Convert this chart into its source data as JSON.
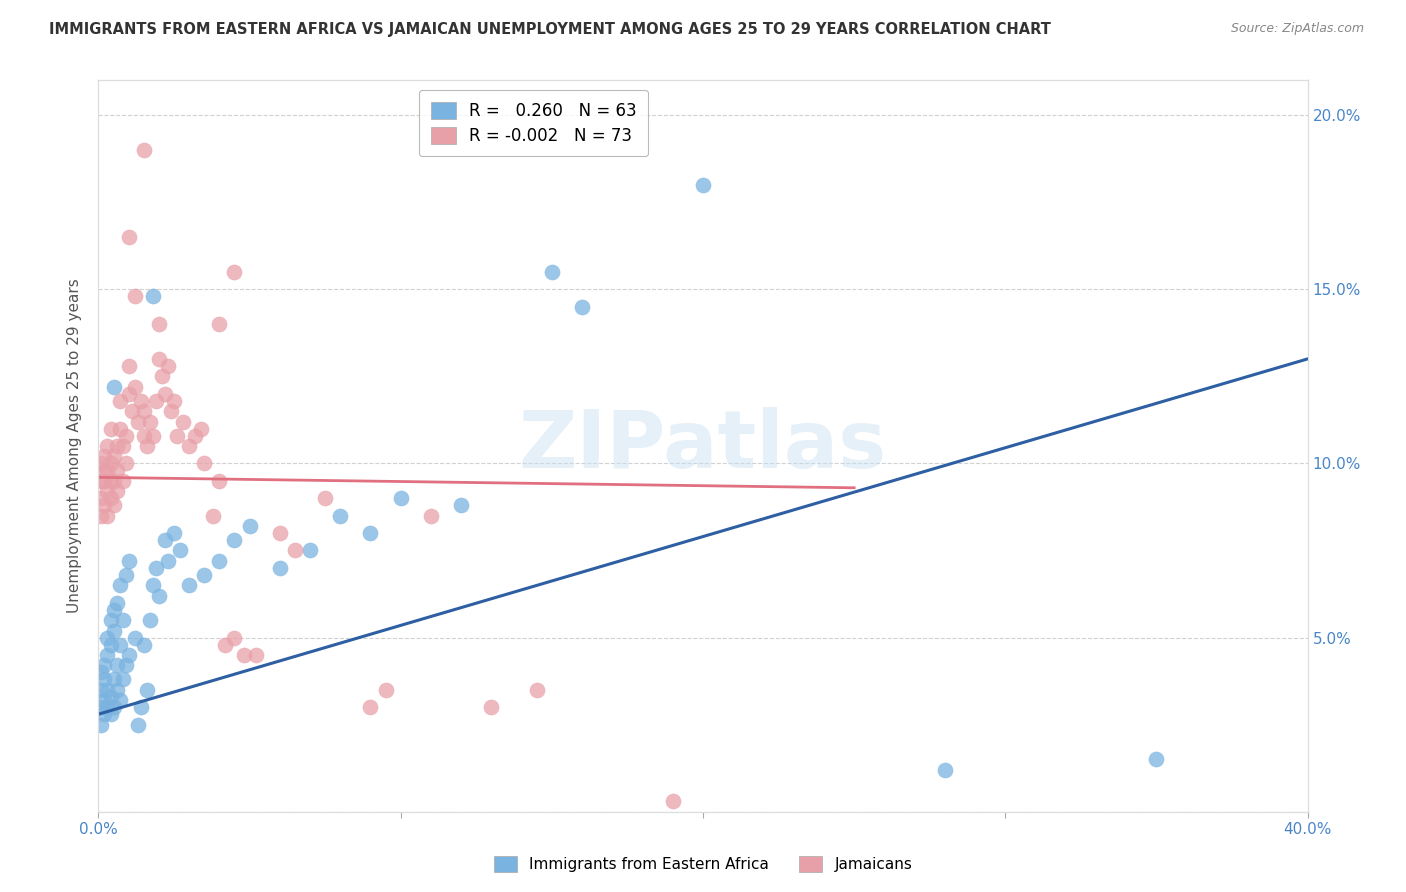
{
  "title": "IMMIGRANTS FROM EASTERN AFRICA VS JAMAICAN UNEMPLOYMENT AMONG AGES 25 TO 29 YEARS CORRELATION CHART",
  "source": "Source: ZipAtlas.com",
  "ylabel": "Unemployment Among Ages 25 to 29 years",
  "xlim": [
    0,
    0.4
  ],
  "ylim": [
    0,
    0.21
  ],
  "x_ticks": [
    0.0,
    0.1,
    0.2,
    0.3,
    0.4
  ],
  "x_tick_labels": [
    "0.0%",
    "",
    "",
    "",
    "40.0%"
  ],
  "y_ticks_right": [
    0.0,
    0.05,
    0.1,
    0.15,
    0.2
  ],
  "y_tick_labels_right": [
    "",
    "5.0%",
    "10.0%",
    "15.0%",
    "20.0%"
  ],
  "r_blue": 0.26,
  "n_blue": 63,
  "r_pink": -0.002,
  "n_pink": 73,
  "blue_color": "#7ab3e0",
  "pink_color": "#e8a0a8",
  "blue_line_color": "#2e5fa3",
  "pink_line_color": "#e07080",
  "legend_labels": [
    "Immigrants from Eastern Africa",
    "Jamaicans"
  ],
  "watermark": "ZIPatlas",
  "blue_points": [
    [
      0.001,
      0.03
    ],
    [
      0.001,
      0.025
    ],
    [
      0.001,
      0.035
    ],
    [
      0.001,
      0.04
    ],
    [
      0.002,
      0.032
    ],
    [
      0.002,
      0.028
    ],
    [
      0.002,
      0.038
    ],
    [
      0.002,
      0.042
    ],
    [
      0.003,
      0.03
    ],
    [
      0.003,
      0.035
    ],
    [
      0.003,
      0.045
    ],
    [
      0.003,
      0.05
    ],
    [
      0.004,
      0.028
    ],
    [
      0.004,
      0.033
    ],
    [
      0.004,
      0.048
    ],
    [
      0.004,
      0.055
    ],
    [
      0.005,
      0.03
    ],
    [
      0.005,
      0.038
    ],
    [
      0.005,
      0.052
    ],
    [
      0.005,
      0.058
    ],
    [
      0.006,
      0.035
    ],
    [
      0.006,
      0.042
    ],
    [
      0.006,
      0.06
    ],
    [
      0.007,
      0.032
    ],
    [
      0.007,
      0.048
    ],
    [
      0.007,
      0.065
    ],
    [
      0.008,
      0.038
    ],
    [
      0.008,
      0.055
    ],
    [
      0.009,
      0.042
    ],
    [
      0.009,
      0.068
    ],
    [
      0.01,
      0.045
    ],
    [
      0.01,
      0.072
    ],
    [
      0.012,
      0.05
    ],
    [
      0.013,
      0.025
    ],
    [
      0.014,
      0.03
    ],
    [
      0.015,
      0.048
    ],
    [
      0.016,
      0.035
    ],
    [
      0.017,
      0.055
    ],
    [
      0.018,
      0.065
    ],
    [
      0.019,
      0.07
    ],
    [
      0.02,
      0.062
    ],
    [
      0.022,
      0.078
    ],
    [
      0.023,
      0.072
    ],
    [
      0.025,
      0.08
    ],
    [
      0.027,
      0.075
    ],
    [
      0.03,
      0.065
    ],
    [
      0.035,
      0.068
    ],
    [
      0.04,
      0.072
    ],
    [
      0.045,
      0.078
    ],
    [
      0.05,
      0.082
    ],
    [
      0.06,
      0.07
    ],
    [
      0.07,
      0.075
    ],
    [
      0.08,
      0.085
    ],
    [
      0.09,
      0.08
    ],
    [
      0.1,
      0.09
    ],
    [
      0.12,
      0.088
    ],
    [
      0.15,
      0.155
    ],
    [
      0.16,
      0.145
    ],
    [
      0.2,
      0.18
    ],
    [
      0.28,
      0.012
    ],
    [
      0.35,
      0.015
    ],
    [
      0.018,
      0.148
    ],
    [
      0.005,
      0.122
    ]
  ],
  "pink_points": [
    [
      0.001,
      0.09
    ],
    [
      0.001,
      0.085
    ],
    [
      0.001,
      0.095
    ],
    [
      0.001,
      0.1
    ],
    [
      0.002,
      0.088
    ],
    [
      0.002,
      0.095
    ],
    [
      0.002,
      0.098
    ],
    [
      0.002,
      0.102
    ],
    [
      0.003,
      0.085
    ],
    [
      0.003,
      0.092
    ],
    [
      0.003,
      0.098
    ],
    [
      0.003,
      0.105
    ],
    [
      0.004,
      0.09
    ],
    [
      0.004,
      0.095
    ],
    [
      0.004,
      0.1
    ],
    [
      0.004,
      0.11
    ],
    [
      0.005,
      0.088
    ],
    [
      0.005,
      0.095
    ],
    [
      0.005,
      0.102
    ],
    [
      0.006,
      0.092
    ],
    [
      0.006,
      0.098
    ],
    [
      0.006,
      0.105
    ],
    [
      0.007,
      0.11
    ],
    [
      0.007,
      0.118
    ],
    [
      0.008,
      0.095
    ],
    [
      0.008,
      0.105
    ],
    [
      0.009,
      0.1
    ],
    [
      0.009,
      0.108
    ],
    [
      0.01,
      0.12
    ],
    [
      0.01,
      0.128
    ],
    [
      0.011,
      0.115
    ],
    [
      0.012,
      0.122
    ],
    [
      0.013,
      0.112
    ],
    [
      0.014,
      0.118
    ],
    [
      0.015,
      0.108
    ],
    [
      0.015,
      0.115
    ],
    [
      0.016,
      0.105
    ],
    [
      0.017,
      0.112
    ],
    [
      0.018,
      0.108
    ],
    [
      0.019,
      0.118
    ],
    [
      0.02,
      0.14
    ],
    [
      0.02,
      0.13
    ],
    [
      0.021,
      0.125
    ],
    [
      0.022,
      0.12
    ],
    [
      0.023,
      0.128
    ],
    [
      0.024,
      0.115
    ],
    [
      0.025,
      0.118
    ],
    [
      0.026,
      0.108
    ],
    [
      0.028,
      0.112
    ],
    [
      0.03,
      0.105
    ],
    [
      0.032,
      0.108
    ],
    [
      0.034,
      0.11
    ],
    [
      0.035,
      0.1
    ],
    [
      0.038,
      0.085
    ],
    [
      0.04,
      0.095
    ],
    [
      0.042,
      0.048
    ],
    [
      0.045,
      0.05
    ],
    [
      0.048,
      0.045
    ],
    [
      0.052,
      0.045
    ],
    [
      0.06,
      0.08
    ],
    [
      0.065,
      0.075
    ],
    [
      0.075,
      0.09
    ],
    [
      0.09,
      0.03
    ],
    [
      0.095,
      0.035
    ],
    [
      0.11,
      0.085
    ],
    [
      0.13,
      0.03
    ],
    [
      0.145,
      0.035
    ],
    [
      0.015,
      0.19
    ],
    [
      0.01,
      0.165
    ],
    [
      0.045,
      0.155
    ],
    [
      0.012,
      0.148
    ],
    [
      0.04,
      0.14
    ],
    [
      0.19,
      0.003
    ]
  ]
}
